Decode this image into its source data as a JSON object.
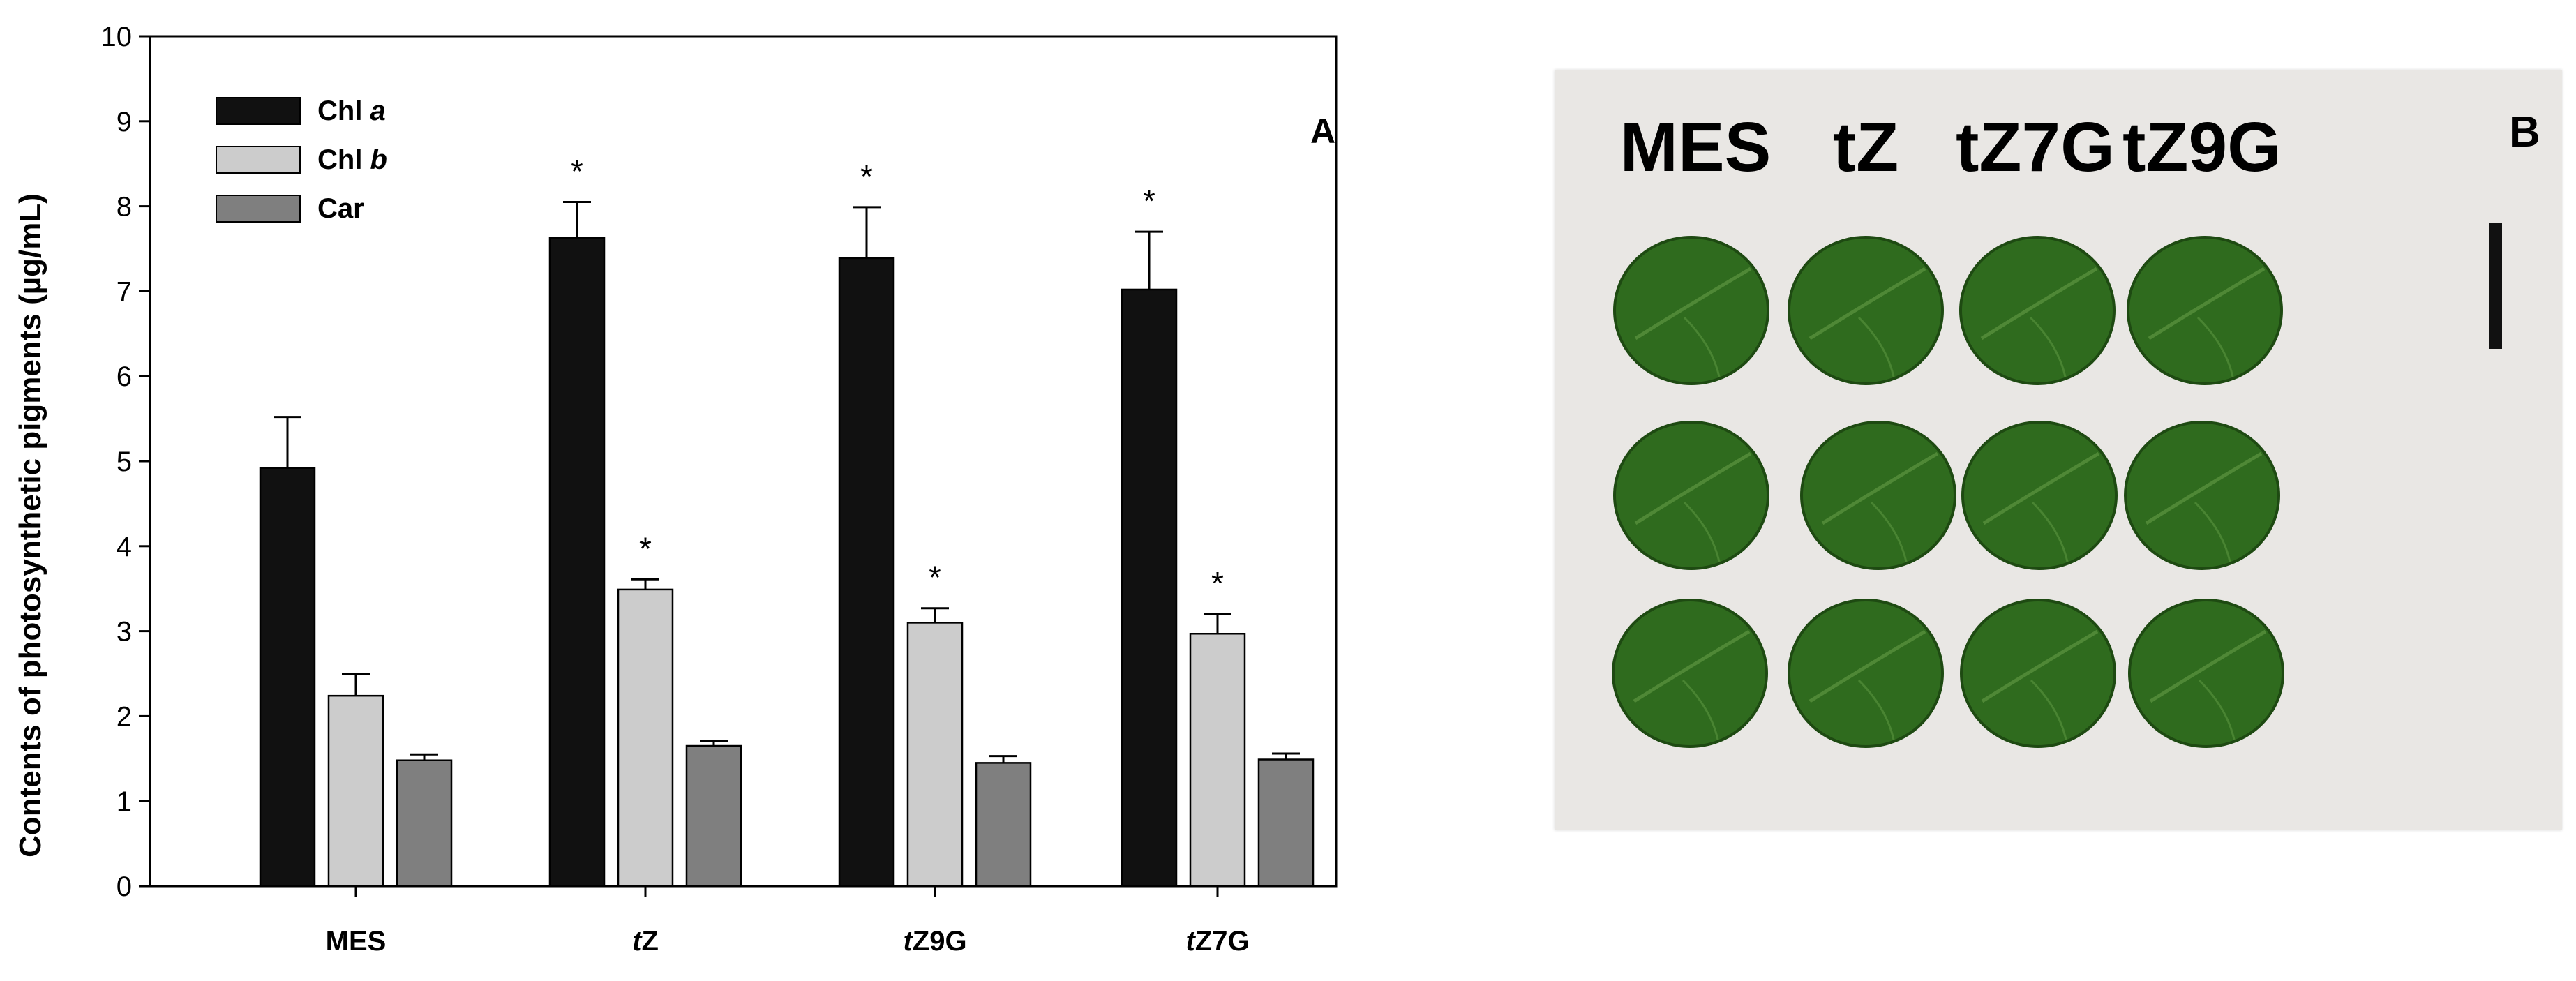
{
  "chart_data": {
    "type": "bar",
    "ylabel": "Contents of photosynthetic pigments (µg/mL)",
    "panel_letter": "A",
    "ylim": [
      0,
      10
    ],
    "yticks": [
      "0",
      "1",
      "2",
      "3",
      "4",
      "5",
      "6",
      "7",
      "8",
      "9",
      "10"
    ],
    "categories": [
      {
        "prefix": "",
        "rest": "MES"
      },
      {
        "prefix": "t",
        "rest": "Z"
      },
      {
        "prefix": "t",
        "rest": "Z9G"
      },
      {
        "prefix": "t",
        "rest": "Z7G"
      }
    ],
    "legend_position": "top-left",
    "significance_marker": "*",
    "series": [
      {
        "name_plain": "Chl ",
        "name_italic": "a",
        "color": "#111111",
        "values": [
          4.92,
          7.63,
          7.39,
          7.02
        ],
        "errors": [
          0.6,
          0.42,
          0.6,
          0.68
        ],
        "significant": [
          false,
          true,
          true,
          true
        ]
      },
      {
        "name_plain": "Chl ",
        "name_italic": "b",
        "color": "#cccccc",
        "values": [
          2.24,
          3.49,
          3.1,
          2.97
        ],
        "errors": [
          0.26,
          0.12,
          0.17,
          0.23
        ],
        "significant": [
          false,
          true,
          true,
          true
        ]
      },
      {
        "name_plain": "Car",
        "name_italic": "",
        "color": "#7f7f7f",
        "values": [
          1.48,
          1.65,
          1.45,
          1.49
        ],
        "errors": [
          0.07,
          0.06,
          0.08,
          0.07
        ],
        "significant": [
          false,
          false,
          false,
          false
        ]
      }
    ]
  },
  "photo": {
    "panel_letter": "B",
    "column_labels": [
      "MES",
      "tZ",
      "tZ7G",
      "tZ9G"
    ],
    "leaf_color": "#2f6b1e",
    "background_color": "#e9e7e4",
    "scale_bar_color": "#111111"
  }
}
